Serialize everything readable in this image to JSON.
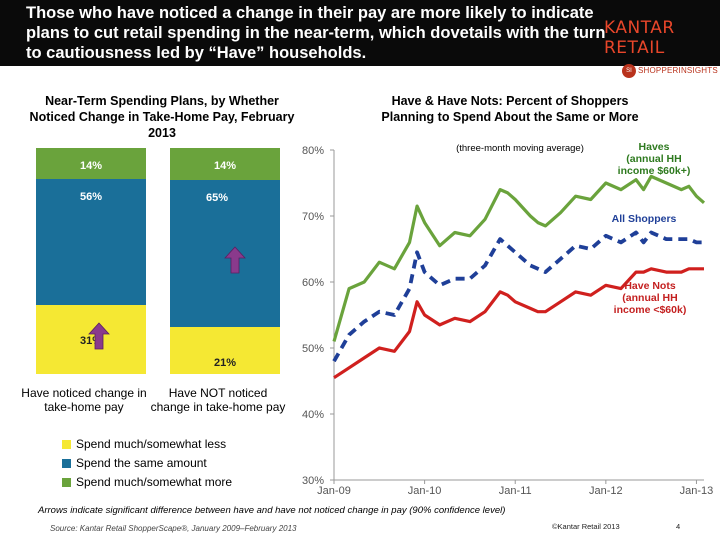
{
  "headline": "Those who have noticed a change in their pay are more likely to indicate plans to cut retail spending in the near-term, which dovetails with the turn to cautiousness led by “Have” households.",
  "logo": "KANTAR RETAIL",
  "badge": "SHOPPERINSIGHTS",
  "colors": {
    "spend_less": "#f5e833",
    "same": "#1a6f99",
    "more": "#6aa33c",
    "arrow": "#8a3a8c",
    "haves": "#6aa33c",
    "all": "#1f3f98",
    "have_nots": "#d0201e"
  },
  "chart_data": [
    {
      "type": "bar",
      "stacked": true,
      "title": "Near-Term Spending Plans, by Whether Noticed Change in Take-Home Pay, February 2013",
      "categories": [
        "Have noticed change in take-home pay",
        "Have NOT noticed change in take-home pay"
      ],
      "series": [
        {
          "name": "Spend much/somewhat less",
          "values": [
            31,
            21
          ],
          "labels": [
            "31%",
            "21%"
          ]
        },
        {
          "name": "Spend the same amount",
          "values": [
            56,
            65
          ],
          "labels": [
            "56%",
            "65%"
          ]
        },
        {
          "name": "Spend much/somewhat more",
          "values": [
            14,
            14
          ],
          "labels": [
            "14%",
            "14%"
          ]
        }
      ],
      "significance_arrows": [
        {
          "category": 0,
          "series": "Spend much/somewhat less"
        },
        {
          "category": 1,
          "series": "Spend the same amount"
        }
      ]
    },
    {
      "type": "line",
      "title": "Have & Have Nots: Percent of Shoppers Planning to Spend About the Same or More",
      "subtitle": "(three-month moving average)",
      "x_ticks": [
        "Jan-09",
        "Jan-10",
        "Jan-11",
        "Jan-12",
        "Jan-13"
      ],
      "y_ticks": [
        "30%",
        "40%",
        "50%",
        "60%",
        "70%",
        "80%"
      ],
      "ylim": [
        30,
        80
      ],
      "x_range": [
        0,
        49
      ],
      "series": [
        {
          "name": "Haves (annual HH income $60k+)",
          "x": [
            0,
            2,
            4,
            6,
            8,
            10,
            11,
            12,
            14,
            16,
            18,
            20,
            22,
            23,
            24,
            26,
            27,
            28,
            30,
            32,
            34,
            36,
            38,
            40,
            41,
            42,
            44,
            46,
            47,
            48,
            49
          ],
          "values": [
            51,
            59,
            60,
            63,
            62,
            66,
            71.5,
            69,
            65.5,
            67.5,
            67,
            69.5,
            74,
            73.5,
            72.5,
            70,
            69,
            68.5,
            70.5,
            73,
            72.5,
            75,
            74,
            75.5,
            74,
            76,
            75,
            74,
            74.5,
            73,
            72
          ]
        },
        {
          "name": "All Shoppers",
          "x": [
            0,
            2,
            4,
            6,
            8,
            10,
            11,
            12,
            14,
            16,
            18,
            20,
            22,
            23,
            24,
            26,
            27,
            28,
            30,
            32,
            34,
            36,
            38,
            40,
            41,
            42,
            44,
            46,
            47,
            48,
            49
          ],
          "values": [
            48,
            52,
            54,
            55.5,
            55,
            59,
            64.5,
            61.5,
            59.5,
            60.5,
            60.5,
            62.5,
            66.5,
            65.5,
            64.5,
            62.5,
            62,
            61.5,
            63.5,
            65.5,
            65,
            67,
            66,
            67.5,
            66,
            67.5,
            66.5,
            66.5,
            66.5,
            66,
            66
          ]
        },
        {
          "name": "Have Nots (annual HH income <$60k)",
          "x": [
            0,
            2,
            4,
            6,
            8,
            10,
            11,
            12,
            14,
            16,
            18,
            20,
            22,
            23,
            24,
            26,
            27,
            28,
            30,
            32,
            34,
            36,
            38,
            40,
            41,
            42,
            44,
            46,
            47,
            48,
            49
          ],
          "values": [
            45.5,
            47,
            48.5,
            50,
            49.5,
            52.5,
            57,
            55,
            53.5,
            54.5,
            54,
            55.5,
            58.5,
            58,
            57,
            56,
            55.5,
            55.5,
            57,
            58.5,
            58,
            59.5,
            59,
            61.5,
            61.5,
            62,
            61.5,
            61.5,
            62,
            62,
            62
          ]
        }
      ],
      "annotations": [
        {
          "series": 0,
          "text": "Haves (annual HH income $60k+)",
          "lines": [
            "Haves",
            "(annual HH",
            "income $60k+)"
          ]
        },
        {
          "series": 1,
          "text": "All Shoppers",
          "lines": [
            "All Shoppers"
          ]
        },
        {
          "series": 2,
          "text": "Have Nots (annual HH income <$60k)",
          "lines": [
            "Have Nots",
            "(annual HH",
            "income <$60k)"
          ]
        }
      ]
    }
  ],
  "footnote": "Arrows indicate significant difference between have and have not noticed change in pay (90% confidence level)",
  "source": "Source: Kantar Retail ShopperScape®, January 2009–February 2013",
  "copyright": "©Kantar Retail 2013",
  "page_number": "4"
}
